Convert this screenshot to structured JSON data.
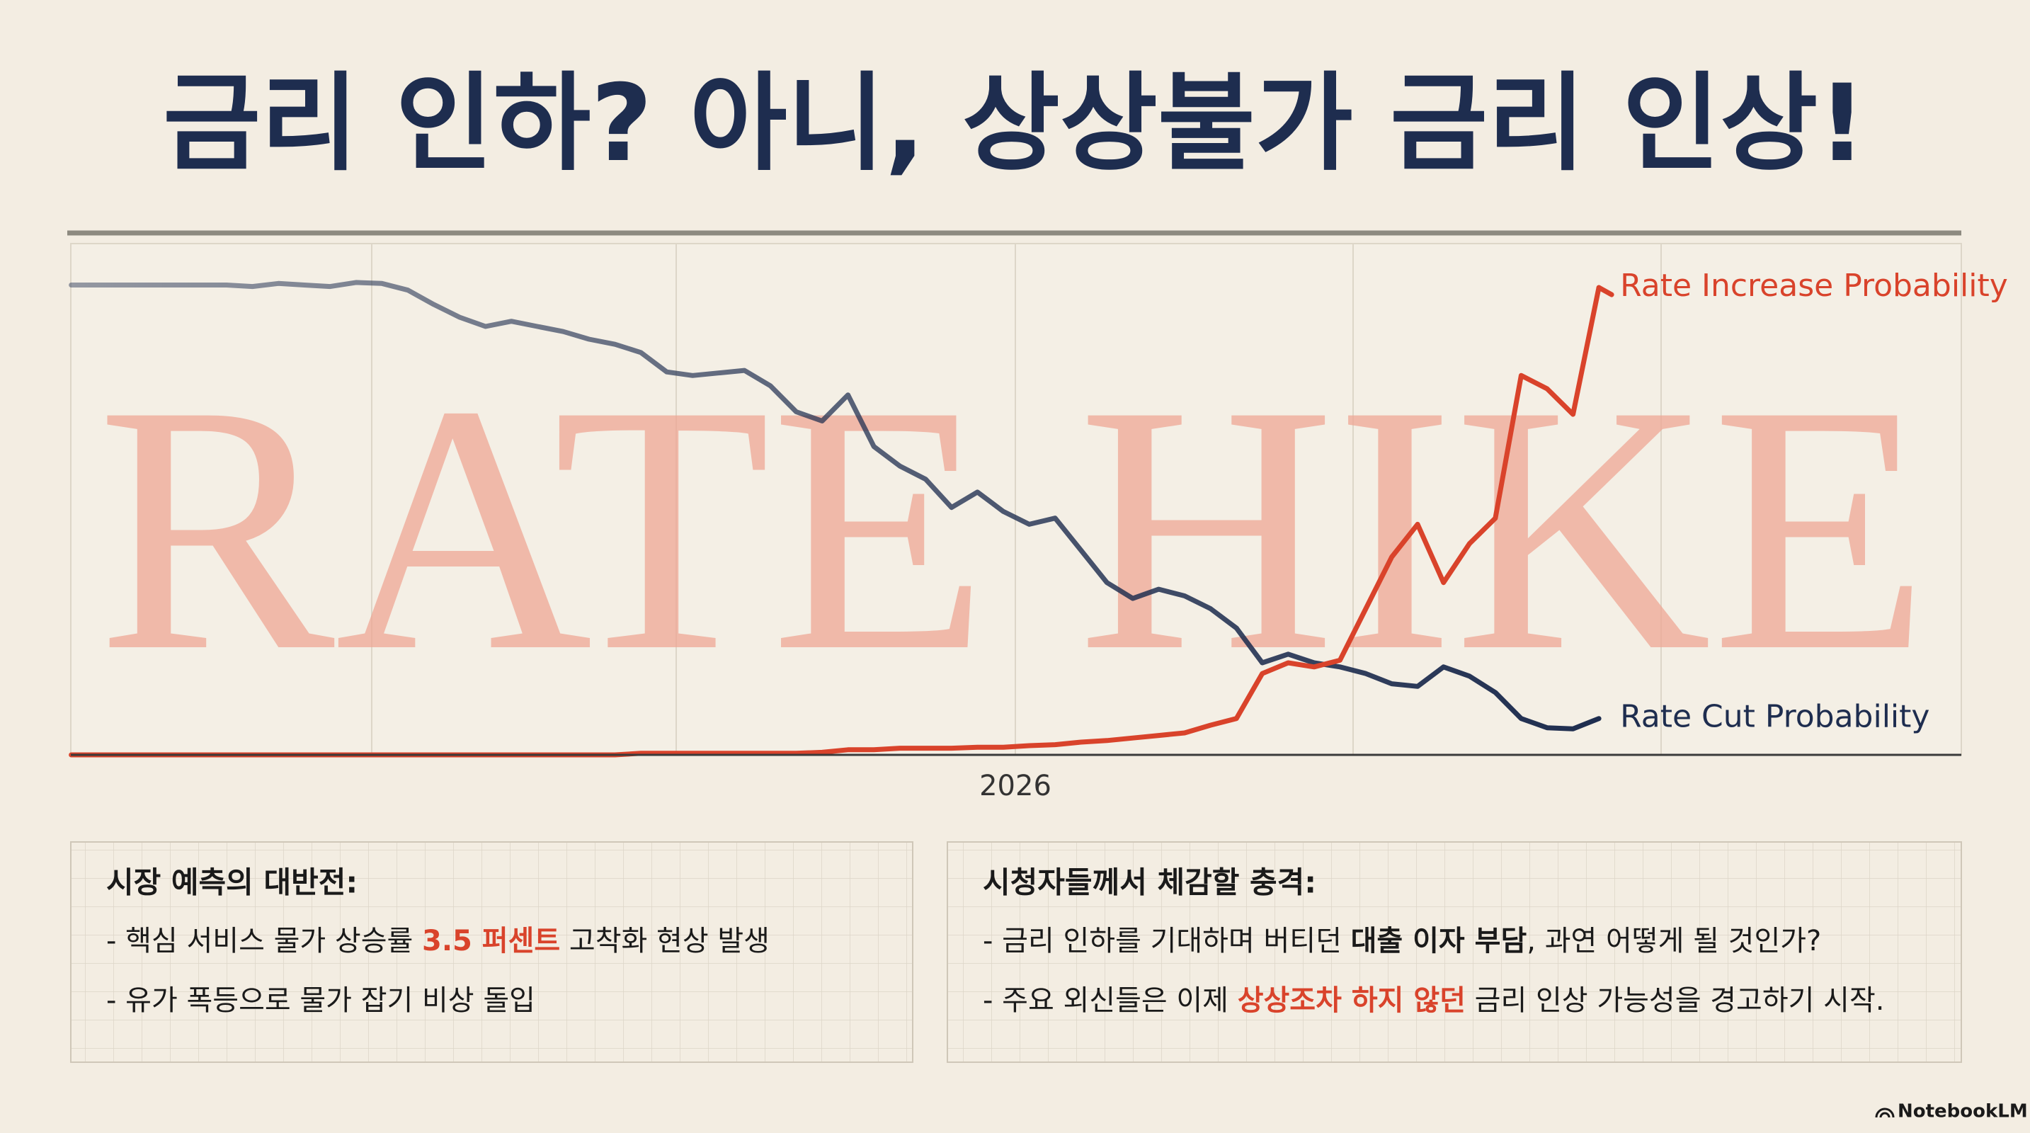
{
  "title": "금리 인하? 아니, 상상불가 금리 인상!",
  "chart_data": {
    "type": "line",
    "watermark": "RATE HIKE",
    "xlabel": "2026",
    "ylim": [
      0,
      100
    ],
    "series": [
      {
        "name": "Rate Cut Probability",
        "color": "#1e2d4f",
        "values": [
          91.9,
          91.9,
          91.9,
          91.9,
          91.9,
          91.9,
          91.9,
          91.6,
          92.2,
          91.9,
          91.6,
          92.4,
          92.2,
          90.9,
          88.1,
          85.6,
          83.8,
          84.8,
          83.8,
          82.8,
          81.3,
          80.3,
          78.7,
          74.9,
          74.2,
          74.7,
          75.2,
          72.2,
          67.1,
          65.3,
          70.4,
          60.3,
          56.5,
          53.9,
          48.4,
          51.4,
          47.6,
          45.1,
          46.3,
          40.0,
          33.7,
          30.6,
          32.4,
          31.1,
          28.6,
          24.8,
          18.0,
          19.7,
          18.0,
          17.2,
          15.9,
          13.9,
          13.4,
          17.2,
          15.4,
          12.2,
          7.1,
          5.3,
          5.1,
          7.1
        ]
      },
      {
        "name": "Rate Increase Probability",
        "color": "#d9432b",
        "values": [
          0,
          0,
          0,
          0,
          0,
          0,
          0,
          0,
          0,
          0,
          0,
          0,
          0,
          0,
          0,
          0,
          0,
          0,
          0,
          0,
          0,
          0,
          0.3,
          0.3,
          0.3,
          0.3,
          0.3,
          0.3,
          0.3,
          0.5,
          1.0,
          1.0,
          1.3,
          1.3,
          1.3,
          1.5,
          1.5,
          1.8,
          2.0,
          2.5,
          2.8,
          3.3,
          3.8,
          4.3,
          5.8,
          7.1,
          15.9,
          18.0,
          17.2,
          18.5,
          28.6,
          38.7,
          45.1,
          33.7,
          41.3,
          46.3,
          74.2,
          71.6,
          66.6,
          91.4
        ]
      }
    ]
  },
  "panels": [
    {
      "heading": "시장 예측의 대반전:",
      "items": [
        [
          {
            "text": "- 핵심 서비스 물가 상승률 "
          },
          {
            "text": "3.5 퍼센트",
            "em": "red"
          },
          {
            "text": " 고착화 현상 발생"
          }
        ],
        [
          {
            "text": "- 유가 폭등으로 물가 잡기 비상 돌입"
          }
        ]
      ]
    },
    {
      "heading": "시청자들께서 체감할 충격:",
      "items": [
        [
          {
            "text": "- 금리 인하를 기대하며 버티던 "
          },
          {
            "text": "대출 이자 부담",
            "em": "bold"
          },
          {
            "text": ", 과연 어떻게 될 것인가?"
          }
        ],
        [
          {
            "text": "- 주요 외신들은 이제 "
          },
          {
            "text": "상상조차 하지 않던",
            "em": "red"
          },
          {
            "text": " 금리 인상 가능성을 경고하기 시작."
          }
        ]
      ]
    }
  ],
  "footer": "NotebookLM"
}
